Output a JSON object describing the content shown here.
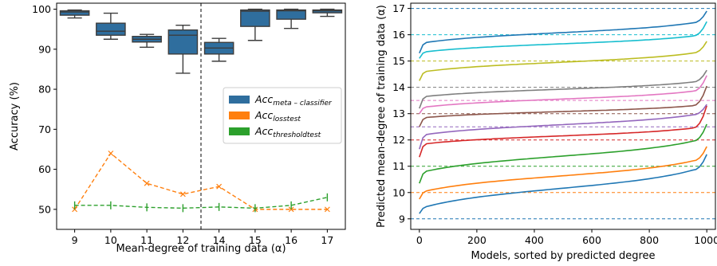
{
  "chart_data": [
    {
      "type": "box",
      "xlabel": "Mean-degree of training data (α)",
      "ylabel": "Accuracy (%)",
      "categories": [
        "9",
        "10",
        "11",
        "12",
        "14",
        "15",
        "16",
        "17"
      ],
      "ylim": [
        45,
        101.5
      ],
      "yticks": [
        50,
        60,
        70,
        80,
        90,
        100
      ],
      "divider_between": [
        "12",
        "14"
      ],
      "colors": {
        "box": "#2f6e9e",
        "loss": "#ff7f0e",
        "threshold": "#2ca02c"
      },
      "legend": {
        "position": "center-right",
        "entries": [
          {
            "base": "Acc",
            "sub": "meta – classifier",
            "color": "#2f6e9e"
          },
          {
            "base": "Acc",
            "sub": "losstest",
            "color": "#ff7f0e"
          },
          {
            "base": "Acc",
            "sub": "thresholdtest",
            "color": "#2ca02c"
          }
        ]
      },
      "boxes": [
        {
          "category": "9",
          "whislo": 97.8,
          "q1": 98.5,
          "med": 99.3,
          "q3": 99.6,
          "whishi": 99.8
        },
        {
          "category": "10",
          "whislo": 92.5,
          "q1": 93.5,
          "med": 94.5,
          "q3": 96.5,
          "whishi": 99.0
        },
        {
          "category": "11",
          "whislo": 90.5,
          "q1": 91.8,
          "med": 92.5,
          "q3": 93.2,
          "whishi": 93.7
        },
        {
          "category": "12",
          "whislo": 84.0,
          "q1": 88.8,
          "med": 93.5,
          "q3": 94.8,
          "whishi": 96.0
        },
        {
          "category": "14",
          "whislo": 87.0,
          "q1": 88.8,
          "med": 90.3,
          "q3": 91.7,
          "whishi": 92.7
        },
        {
          "category": "15",
          "whislo": 92.2,
          "q1": 95.7,
          "med": 99.5,
          "q3": 99.8,
          "whishi": 100.0
        },
        {
          "category": "16",
          "whislo": 95.2,
          "q1": 97.5,
          "med": 99.6,
          "q3": 99.8,
          "whishi": 100.0
        },
        {
          "category": "17",
          "whislo": 98.2,
          "q1": 99.1,
          "med": 99.6,
          "q3": 99.8,
          "whishi": 100.0
        }
      ],
      "series": [
        {
          "key": "loss",
          "marker": "x",
          "values": [
            50.0,
            64.0,
            56.5,
            53.8,
            55.7,
            50.0,
            50.0,
            50.0
          ]
        },
        {
          "key": "threshold",
          "marker": "|",
          "values": [
            51.0,
            51.0,
            50.5,
            50.3,
            50.6,
            50.3,
            51.0,
            53.0
          ]
        }
      ]
    },
    {
      "type": "line",
      "xlabel": "Models, sorted by predicted degree",
      "ylabel": "Predicted mean-degree of training data (α)",
      "xlim": [
        -30,
        1030
      ],
      "ylim": [
        8.6,
        17.2
      ],
      "xticks": [
        0,
        200,
        400,
        600,
        800,
        1000
      ],
      "yticks": [
        9,
        10,
        11,
        12,
        13,
        14,
        15,
        16,
        17
      ],
      "series": [
        {
          "target": 9,
          "color": "#1f77b4",
          "start": 9.2,
          "rise": 9.45,
          "mid": 10.0,
          "end_lo": 10.85,
          "end": 11.45
        },
        {
          "target": 10,
          "color": "#ff7f0e",
          "start": 9.75,
          "rise": 10.05,
          "mid": 10.6,
          "end_lo": 11.2,
          "end": 11.75
        },
        {
          "target": 11,
          "color": "#2ca02c",
          "start": 10.35,
          "rise": 10.8,
          "mid": 11.35,
          "end_lo": 11.95,
          "end": 12.6
        },
        {
          "target": 12,
          "color": "#d62728",
          "start": 11.35,
          "rise": 11.85,
          "mid": 12.1,
          "end_lo": 12.45,
          "end": 13.3
        },
        {
          "target": 12.5,
          "color": "#9467bd",
          "start": 11.65,
          "rise": 12.2,
          "mid": 12.6,
          "end_lo": 12.95,
          "end": 13.35
        },
        {
          "target": 13,
          "color": "#8c564b",
          "start": 12.5,
          "rise": 12.85,
          "mid": 13.05,
          "end_lo": 13.3,
          "end": 14.05
        },
        {
          "target": 13.5,
          "color": "#e377c2",
          "start": 13.0,
          "rise": 13.25,
          "mid": 13.45,
          "end_lo": 13.85,
          "end": 14.45
        },
        {
          "target": 14,
          "color": "#7f7f7f",
          "start": 13.2,
          "rise": 13.65,
          "mid": 13.85,
          "end_lo": 14.2,
          "end": 14.65
        },
        {
          "target": 15,
          "color": "#bcbd22",
          "start": 14.25,
          "rise": 14.6,
          "mid": 15.0,
          "end_lo": 15.3,
          "end": 15.75
        },
        {
          "target": 16,
          "color": "#17becf",
          "start": 15.1,
          "rise": 15.35,
          "mid": 15.65,
          "end_lo": 15.95,
          "end": 16.5
        },
        {
          "target": 17,
          "color": "#1f77b4",
          "start": 15.3,
          "rise": 15.7,
          "mid": 16.05,
          "end_lo": 16.45,
          "end": 16.9
        }
      ]
    }
  ]
}
